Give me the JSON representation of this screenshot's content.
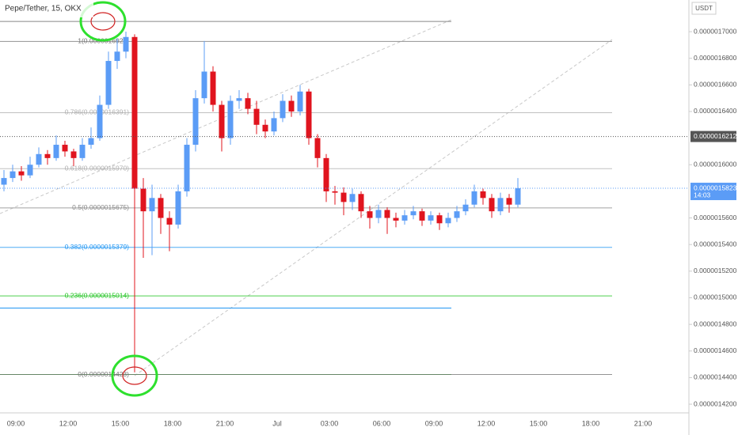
{
  "chart_data": {
    "type": "candlestick",
    "title": "Pepe/Tether, 15, OKX",
    "currency": "USDT",
    "up_color": "#5b9cf6",
    "down_color": "#e0141e",
    "ylim": [
      1.4135e-06,
      1.7238e-06
    ],
    "yticks": [
      {
        "value": 1.7e-06,
        "label": "0.0000017000"
      },
      {
        "value": 1.68e-06,
        "label": "0.0000016800"
      },
      {
        "value": 1.66e-06,
        "label": "0.0000016600"
      },
      {
        "value": 1.64e-06,
        "label": "0.0000016400"
      },
      {
        "value": 1.6e-06,
        "label": "0.0000016000"
      },
      {
        "value": 1.56e-06,
        "label": "0.0000015600"
      },
      {
        "value": 1.54e-06,
        "label": "0.0000015400"
      },
      {
        "value": 1.52e-06,
        "label": "0.0000015200"
      },
      {
        "value": 1.5e-06,
        "label": "0.0000015000"
      },
      {
        "value": 1.48e-06,
        "label": "0.0000014800"
      },
      {
        "value": 1.46e-06,
        "label": "0.0000014600"
      },
      {
        "value": 1.44e-06,
        "label": "0.0000014400"
      },
      {
        "value": 1.42e-06,
        "label": "0.0000014200"
      }
    ],
    "x_labels": [
      "09:00",
      "12:00",
      "15:00",
      "18:00",
      "21:00",
      "Jul",
      "03:00",
      "06:00",
      "09:00",
      "12:00",
      "15:00",
      "18:00",
      "21:00"
    ],
    "open": [
      1.585e-06,
      1.59e-06,
      1.595e-06,
      1.592e-06,
      1.6e-06,
      1.608e-06,
      1.605e-06,
      1.615e-06,
      1.61e-06,
      1.605e-06,
      1.615e-06,
      1.62e-06,
      1.645e-06,
      1.678e-06,
      1.685e-06,
      1.696e-06,
      1.582e-06,
      1.565e-06,
      1.575e-06,
      1.56e-06,
      1.555e-06,
      1.58e-06,
      1.615e-06,
      1.65e-06,
      1.67e-06,
      1.645e-06,
      1.62e-06,
      1.648e-06,
      1.65e-06,
      1.642e-06,
      1.63e-06,
      1.625e-06,
      1.635e-06,
      1.648e-06,
      1.64e-06,
      1.655e-06,
      1.62e-06,
      1.605e-06,
      1.58e-06,
      1.579e-06,
      1.572e-06,
      1.578e-06,
      1.565e-06,
      1.56e-06,
      1.566e-06,
      1.56e-06,
      1.558e-06,
      1.562e-06,
      1.565e-06,
      1.558e-06,
      1.562e-06,
      1.556e-06,
      1.56e-06,
      1.565e-06,
      1.57e-06,
      1.58e-06,
      1.575e-06,
      1.565e-06,
      1.575e-06,
      1.57e-06
    ],
    "high": [
      1.596e-06,
      1.6e-06,
      1.599e-06,
      1.606e-06,
      1.613e-06,
      1.611e-06,
      1.622e-06,
      1.618e-06,
      1.612e-06,
      1.62e-06,
      1.628e-06,
      1.652e-06,
      1.685e-06,
      1.695e-06,
      1.7e-06,
      1.698e-06,
      1.59e-06,
      1.585e-06,
      1.578e-06,
      1.565e-06,
      1.585e-06,
      1.62e-06,
      1.656e-06,
      1.693e-06,
      1.674e-06,
      1.648e-06,
      1.652e-06,
      1.656e-06,
      1.654e-06,
      1.648e-06,
      1.634e-06,
      1.64e-06,
      1.653e-06,
      1.652e-06,
      1.66e-06,
      1.657e-06,
      1.623e-06,
      1.608e-06,
      1.584e-06,
      1.583e-06,
      1.582e-06,
      1.58e-06,
      1.569e-06,
      1.57e-06,
      1.568e-06,
      1.564e-06,
      1.566e-06,
      1.569e-06,
      1.567e-06,
      1.565e-06,
      1.564e-06,
      1.564e-06,
      1.569e-06,
      1.574e-06,
      1.585e-06,
      1.582e-06,
      1.578e-06,
      1.579e-06,
      1.578e-06,
      1.59e-06
    ],
    "low": [
      1.58e-06,
      1.587e-06,
      1.588e-06,
      1.59e-06,
      1.598e-06,
      1.6e-06,
      1.603e-06,
      1.606e-06,
      1.599e-06,
      1.603e-06,
      1.612e-06,
      1.618e-06,
      1.642e-06,
      1.672e-06,
      1.68e-06,
      1.444e-06,
      1.53e-06,
      1.532e-06,
      1.548e-06,
      1.535e-06,
      1.552e-06,
      1.576e-06,
      1.61e-06,
      1.646e-06,
      1.64e-06,
      1.61e-06,
      1.615e-06,
      1.642e-06,
      1.638e-06,
      1.623e-06,
      1.62e-06,
      1.622e-06,
      1.632e-06,
      1.636e-06,
      1.637e-06,
      1.615e-06,
      1.598e-06,
      1.572e-06,
      1.57e-06,
      1.562e-06,
      1.566e-06,
      1.56e-06,
      1.552e-06,
      1.556e-06,
      1.548e-06,
      1.553e-06,
      1.555e-06,
      1.559e-06,
      1.554e-06,
      1.555e-06,
      1.551e-06,
      1.553e-06,
      1.557e-06,
      1.562e-06,
      1.568e-06,
      1.57e-06,
      1.56e-06,
      1.562e-06,
      1.564e-06,
      1.568e-06
    ],
    "close": [
      1.59e-06,
      1.595e-06,
      1.592e-06,
      1.6e-06,
      1.608e-06,
      1.605e-06,
      1.615e-06,
      1.61e-06,
      1.605e-06,
      1.615e-06,
      1.62e-06,
      1.645e-06,
      1.678e-06,
      1.685e-06,
      1.696e-06,
      1.582e-06,
      1.565e-06,
      1.575e-06,
      1.56e-06,
      1.555e-06,
      1.58e-06,
      1.615e-06,
      1.65e-06,
      1.67e-06,
      1.645e-06,
      1.62e-06,
      1.648e-06,
      1.65e-06,
      1.642e-06,
      1.63e-06,
      1.625e-06,
      1.635e-06,
      1.648e-06,
      1.64e-06,
      1.655e-06,
      1.62e-06,
      1.605e-06,
      1.58e-06,
      1.579e-06,
      1.572e-06,
      1.578e-06,
      1.565e-06,
      1.56e-06,
      1.566e-06,
      1.56e-06,
      1.558e-06,
      1.562e-06,
      1.565e-06,
      1.558e-06,
      1.562e-06,
      1.556e-06,
      1.56e-06,
      1.565e-06,
      1.57e-06,
      1.58e-06,
      1.575e-06,
      1.565e-06,
      1.575e-06,
      1.57e-06,
      1.5823e-06
    ],
    "fib_levels": [
      {
        "label": "1(0.0000016927)",
        "value": 1.6927e-06,
        "color": "#787878"
      },
      {
        "label": "0.786(0.0000016391)",
        "value": 1.6391e-06,
        "color": "#b0b0b0"
      },
      {
        "label": "0.618(0.0000015970)",
        "value": 1.597e-06,
        "color": "#b0b0b0"
      },
      {
        "label": "0.5(0.0000015675)",
        "value": 1.5675e-06,
        "color": "#8a8a8a"
      },
      {
        "label": "0.382(0.0000015379)",
        "value": 1.5379e-06,
        "color": "#2196f3"
      },
      {
        "label": "0.236(0.0000015014)",
        "value": 1.5014e-06,
        "color": "#22c422"
      },
      {
        "label": "0(0.0000014423)",
        "value": 1.4423e-06,
        "color": "#787878"
      }
    ],
    "horizontal_lines": [
      {
        "value": 1.7077e-06,
        "color": "#888888"
      },
      {
        "value": 1.4923e-06,
        "color": "#2196f3"
      },
      {
        "value": 1.4423e-06,
        "color": "#22c422"
      }
    ],
    "price_tags": [
      {
        "value": 1.6212e-06,
        "label": "0.0000016212",
        "color": "#555555"
      },
      {
        "value": 1.5823e-06,
        "label": "0.0000015823",
        "sub": "14:03",
        "color": "#5b9cf6"
      }
    ]
  }
}
